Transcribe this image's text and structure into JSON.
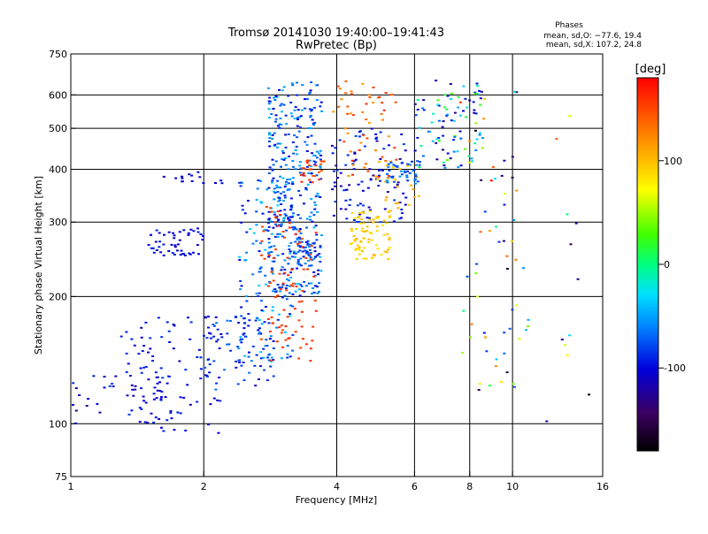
{
  "chart_data": {
    "type": "scatter",
    "title": "Tromsø 20141030 19:40:00–19:41:43",
    "subtitle": "RwPretec (Bp)",
    "stats": {
      "heading": "Phases",
      "line1": "mean, sd,O: −77.6, 19.4",
      "line2": "mean, sd,X: 107.2, 24.8"
    },
    "xlabel": "Frequency [MHz]",
    "ylabel": "Stationary phase Virtual Height [km]",
    "x_scale": "log",
    "y_scale": "log",
    "xlim": [
      1,
      16
    ],
    "ylim": [
      75,
      750
    ],
    "x_ticks": [
      1,
      2,
      4,
      6,
      8,
      10,
      16
    ],
    "y_ticks": [
      75,
      100,
      200,
      300,
      400,
      500,
      600,
      750
    ],
    "grid_x": [
      2,
      4,
      6,
      8,
      10
    ],
    "grid_y": [
      100,
      200,
      300,
      400,
      500,
      600
    ],
    "grid": true,
    "colorbar": {
      "label": "[deg]",
      "min": -180,
      "max": 180,
      "ticks": [
        100,
        0,
        -100
      ]
    },
    "clusters": [
      {
        "f": [
          1.0,
          1.7
        ],
        "h": [
          100,
          130
        ],
        "phase": [
          -130,
          -80
        ],
        "n": 45
      },
      {
        "f": [
          1.3,
          2.2
        ],
        "h": [
          95,
          180
        ],
        "phase": [
          -115,
          -85
        ],
        "n": 90
      },
      {
        "f": [
          1.5,
          2.0
        ],
        "h": [
          250,
          290
        ],
        "phase": [
          -110,
          -90
        ],
        "n": 50
      },
      {
        "f": [
          1.6,
          2.2
        ],
        "h": [
          370,
          400
        ],
        "phase": [
          -110,
          -95
        ],
        "n": 15
      },
      {
        "f": [
          2.0,
          2.9
        ],
        "h": [
          120,
          180
        ],
        "phase": [
          -110,
          -60
        ],
        "n": 70
      },
      {
        "f": [
          2.4,
          3.2
        ],
        "h": [
          140,
          380
        ],
        "phase": [
          -100,
          -30
        ],
        "n": 150
      },
      {
        "f": [
          2.8,
          3.7
        ],
        "h": [
          200,
          650
        ],
        "phase": [
          -110,
          -40
        ],
        "n": 350
      },
      {
        "f": [
          3.2,
          3.7
        ],
        "h": [
          235,
          275
        ],
        "phase": [
          -95,
          -60
        ],
        "n": 40
      },
      {
        "f": [
          2.7,
          3.6
        ],
        "h": [
          140,
          330
        ],
        "phase": [
          150,
          165
        ],
        "n": 90
      },
      {
        "f": [
          3.3,
          3.9
        ],
        "h": [
          370,
          420
        ],
        "phase": [
          140,
          165
        ],
        "n": 25
      },
      {
        "f": [
          3.9,
          5.8
        ],
        "h": [
          300,
          500
        ],
        "phase": [
          -125,
          -80
        ],
        "n": 100
      },
      {
        "f": [
          3.9,
          5.5
        ],
        "h": [
          380,
          650
        ],
        "phase": [
          110,
          170
        ],
        "n": 55
      },
      {
        "f": [
          4.3,
          5.3
        ],
        "h": [
          245,
          320
        ],
        "phase": [
          80,
          105
        ],
        "n": 80
      },
      {
        "f": [
          4.9,
          6.2
        ],
        "h": [
          320,
          420
        ],
        "phase": [
          90,
          115
        ],
        "n": 25
      },
      {
        "f": [
          5.2,
          6.2
        ],
        "h": [
          370,
          420
        ],
        "phase": [
          -90,
          -50
        ],
        "n": 40
      },
      {
        "f": [
          6.0,
          8.6
        ],
        "h": [
          400,
          650
        ],
        "phase": [
          -130,
          40
        ],
        "n": 90
      },
      {
        "f": [
          7.6,
          10.5
        ],
        "h": [
          120,
          650
        ],
        "phase": [
          -180,
          180
        ],
        "n": 55
      },
      {
        "f": [
          10.0,
          15.0
        ],
        "h": [
          90,
          650
        ],
        "phase": [
          -180,
          180
        ],
        "n": 20
      }
    ]
  }
}
